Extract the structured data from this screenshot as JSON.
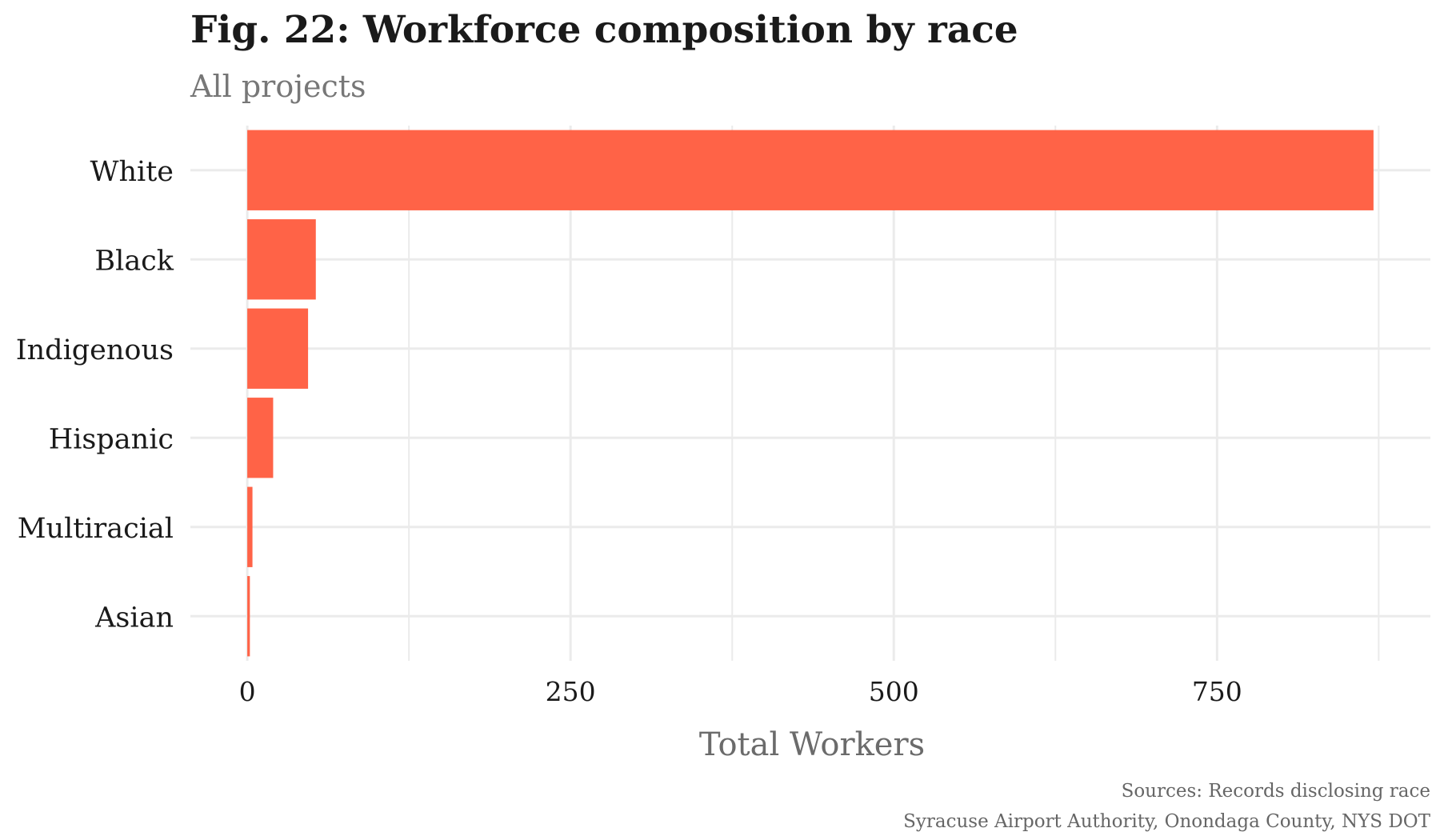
{
  "chart_data": {
    "type": "bar",
    "orientation": "horizontal",
    "title": "Fig. 22: Workforce composition by race",
    "subtitle": "All projects",
    "xlabel": "Total Workers",
    "ylabel": "",
    "categories": [
      "White",
      "Black",
      "Indigenous",
      "Hispanic",
      "Multiracial",
      "Asian"
    ],
    "values": [
      871,
      53,
      47,
      20,
      4,
      2
    ],
    "xlim": [
      -44,
      915
    ],
    "xticks": [
      0,
      250,
      500,
      750
    ],
    "grid": true,
    "legend": "none",
    "bar_color": "#ff6347",
    "gridline_color": "#ebebeb",
    "caption": [
      "Sources: Records disclosing race",
      "Syracuse Airport Authority, Onondaga County, NYS DOT"
    ]
  }
}
